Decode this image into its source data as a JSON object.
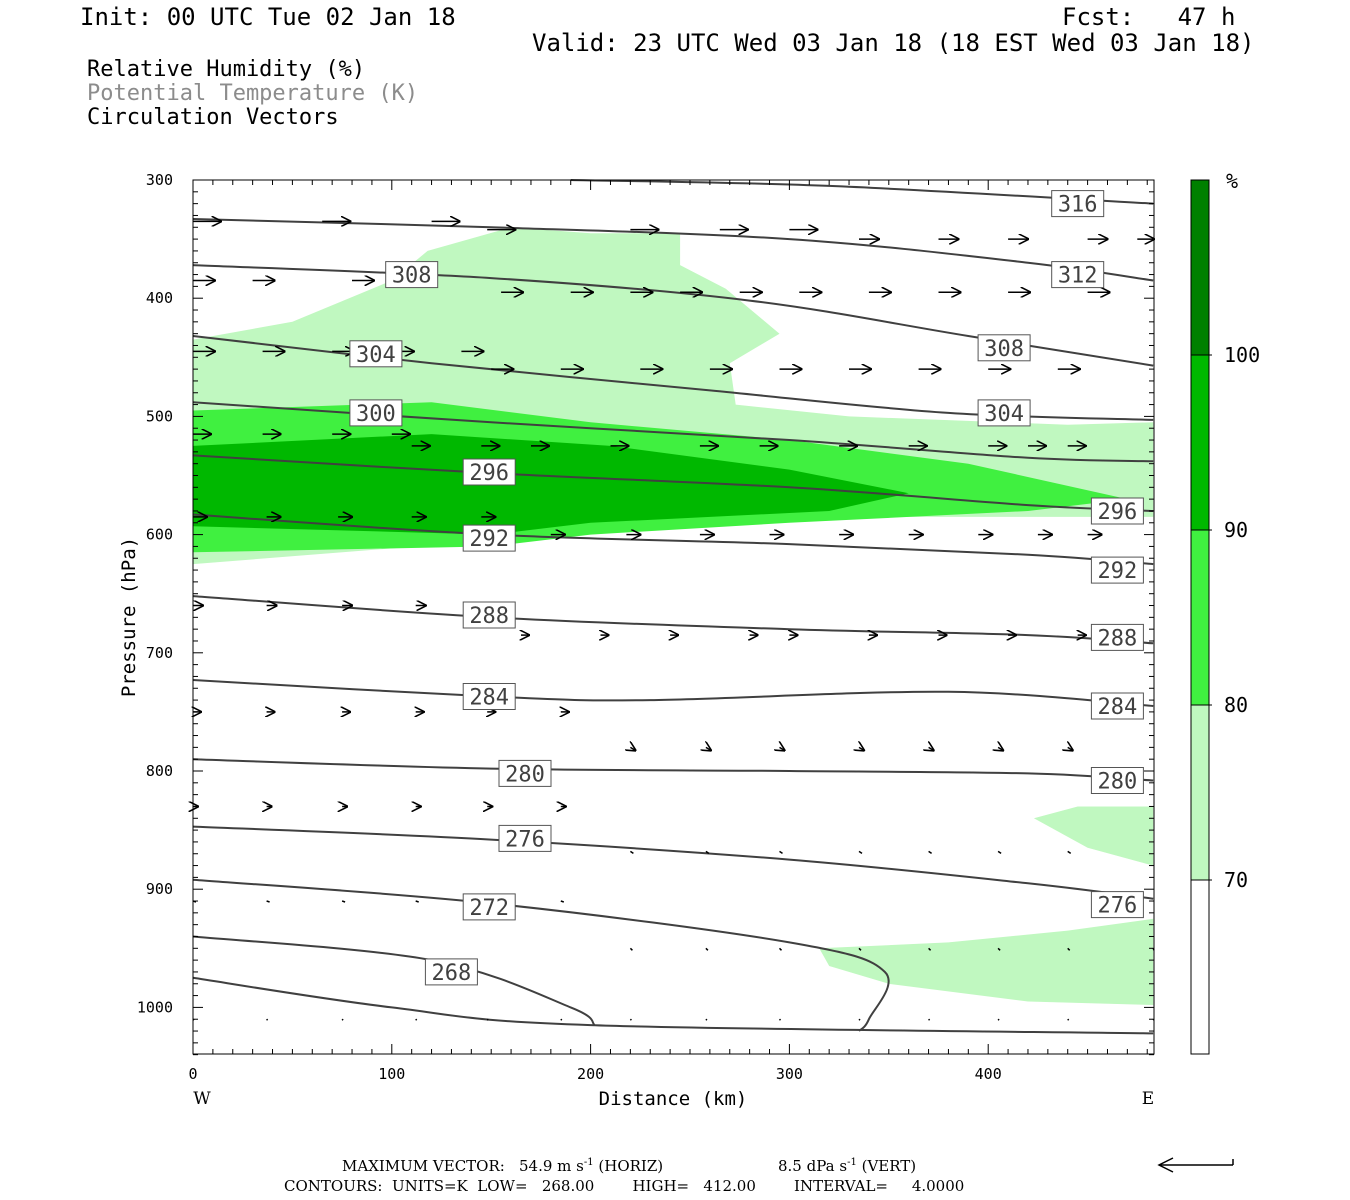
{
  "header": {
    "init": "Init: 00 UTC Tue 02 Jan 18",
    "fcst": "Fcst:   47 h",
    "valid": "Valid: 23 UTC Wed 03 Jan 18 (18 EST Wed 03 Jan 18)"
  },
  "legend": {
    "rh": "Relative Humidity (%)",
    "theta": "Potential Temperature (K)",
    "vectors": "Circulation Vectors"
  },
  "colors": {
    "rh_70_80": "#c0f8c0",
    "rh_80_90": "#40f040",
    "rh_90_100": "#00b800",
    "rh_100": "#008000",
    "theta_line": "#404040"
  },
  "chart_data": {
    "type": "cross-section",
    "xlabel": "Distance (km)",
    "ylabel": "Pressure (hPa)",
    "x_ticks": [
      0,
      100,
      200,
      300,
      400
    ],
    "y_ticks": [
      300,
      400,
      500,
      600,
      700,
      800,
      900,
      1000
    ],
    "xlim": [
      0,
      483
    ],
    "ylim": [
      1040,
      300
    ],
    "west_label": "W",
    "east_label": "E",
    "colorbar": {
      "unit": "%",
      "levels": [
        70,
        80,
        90,
        100
      ],
      "labels": [
        "70",
        "80",
        "90",
        "100"
      ]
    },
    "theta_contours": [
      {
        "label": "316",
        "points": [
          [
            190,
            300
          ],
          [
            320,
            305
          ],
          [
            483,
            320
          ]
        ],
        "labels_at": [
          [
            445,
            320
          ]
        ]
      },
      {
        "label": "312",
        "points": [
          [
            0,
            333
          ],
          [
            150,
            340
          ],
          [
            300,
            350
          ],
          [
            420,
            370
          ],
          [
            483,
            385
          ]
        ],
        "labels_at": [
          [
            445,
            380
          ]
        ]
      },
      {
        "label": "308",
        "points": [
          [
            0,
            372
          ],
          [
            150,
            383
          ],
          [
            280,
            402
          ],
          [
            390,
            432
          ],
          [
            483,
            457
          ]
        ],
        "labels_at": [
          [
            110,
            380
          ],
          [
            408,
            442
          ]
        ]
      },
      {
        "label": "304",
        "points": [
          [
            0,
            432
          ],
          [
            120,
            455
          ],
          [
            260,
            478
          ],
          [
            380,
            497
          ],
          [
            483,
            503
          ]
        ],
        "labels_at": [
          [
            92,
            447
          ],
          [
            408,
            497
          ]
        ]
      },
      {
        "label": "300",
        "points": [
          [
            0,
            488
          ],
          [
            150,
            505
          ],
          [
            300,
            520
          ],
          [
            420,
            535
          ],
          [
            483,
            538
          ]
        ],
        "labels_at": [
          [
            92,
            497
          ]
        ]
      },
      {
        "label": "296",
        "points": [
          [
            0,
            533
          ],
          [
            150,
            548
          ],
          [
            300,
            560
          ],
          [
            420,
            575
          ],
          [
            483,
            580
          ]
        ],
        "labels_at": [
          [
            149,
            547
          ],
          [
            465,
            580
          ]
        ]
      },
      {
        "label": "292",
        "points": [
          [
            0,
            583
          ],
          [
            150,
            600
          ],
          [
            300,
            608
          ],
          [
            420,
            617
          ],
          [
            483,
            625
          ]
        ],
        "labels_at": [
          [
            149,
            603
          ],
          [
            465,
            630
          ]
        ]
      },
      {
        "label": "288",
        "points": [
          [
            0,
            652
          ],
          [
            150,
            670
          ],
          [
            300,
            680
          ],
          [
            420,
            685
          ],
          [
            483,
            692
          ]
        ],
        "labels_at": [
          [
            149,
            668
          ],
          [
            465,
            687
          ]
        ]
      },
      {
        "label": "284",
        "points": [
          [
            0,
            723
          ],
          [
            150,
            737
          ],
          [
            230,
            740
          ],
          [
            380,
            733
          ],
          [
            483,
            745
          ]
        ],
        "labels_at": [
          [
            149,
            737
          ],
          [
            465,
            745
          ]
        ]
      },
      {
        "label": "280",
        "points": [
          [
            0,
            790
          ],
          [
            150,
            798
          ],
          [
            300,
            800
          ],
          [
            420,
            802
          ],
          [
            483,
            808
          ]
        ],
        "labels_at": [
          [
            167,
            802
          ],
          [
            465,
            808
          ]
        ]
      },
      {
        "label": "276",
        "points": [
          [
            0,
            847
          ],
          [
            150,
            858
          ],
          [
            300,
            875
          ],
          [
            420,
            895
          ],
          [
            483,
            908
          ]
        ],
        "labels_at": [
          [
            167,
            857
          ],
          [
            465,
            913
          ]
        ]
      },
      {
        "label": "272",
        "points": [
          [
            0,
            892
          ],
          [
            150,
            912
          ],
          [
            300,
            945
          ],
          [
            348,
            970
          ],
          [
            340,
            1010
          ],
          [
            335,
            1020
          ]
        ],
        "labels_at": [
          [
            149,
            915
          ]
        ]
      },
      {
        "label": "268",
        "points": [
          [
            0,
            940
          ],
          [
            120,
            960
          ],
          [
            190,
            1000
          ],
          [
            202,
            1015
          ]
        ],
        "labels_at": [
          [
            130,
            970
          ]
        ]
      },
      {
        "label": "",
        "points": [
          [
            0,
            975
          ],
          [
            100,
            1000
          ],
          [
            200,
            1015
          ],
          [
            483,
            1022
          ]
        ],
        "labels_at": []
      }
    ],
    "rh_regions": [
      {
        "level": "70",
        "points": [
          [
            0,
            435
          ],
          [
            50,
            420
          ],
          [
            100,
            385
          ],
          [
            118,
            360
          ],
          [
            160,
            340
          ],
          [
            200,
            345
          ],
          [
            245,
            345
          ],
          [
            245,
            372
          ],
          [
            268,
            392
          ],
          [
            295,
            430
          ],
          [
            270,
            455
          ],
          [
            273,
            490
          ],
          [
            330,
            500
          ],
          [
            440,
            507
          ],
          [
            483,
            505
          ],
          [
            483,
            585
          ],
          [
            300,
            585
          ],
          [
            150,
            605
          ],
          [
            0,
            625
          ]
        ]
      },
      {
        "level": "70",
        "points": [
          [
            315,
            950
          ],
          [
            380,
            945
          ],
          [
            440,
            935
          ],
          [
            483,
            925
          ],
          [
            483,
            998
          ],
          [
            420,
            995
          ],
          [
            350,
            980
          ],
          [
            320,
            965
          ]
        ]
      },
      {
        "level": "70",
        "points": [
          [
            423,
            840
          ],
          [
            445,
            830
          ],
          [
            483,
            830
          ],
          [
            483,
            880
          ],
          [
            450,
            865
          ]
        ]
      },
      {
        "level": "80",
        "points": [
          [
            0,
            495
          ],
          [
            120,
            488
          ],
          [
            200,
            505
          ],
          [
            300,
            520
          ],
          [
            390,
            540
          ],
          [
            470,
            570
          ],
          [
            420,
            580
          ],
          [
            300,
            590
          ],
          [
            200,
            600
          ],
          [
            150,
            610
          ],
          [
            0,
            615
          ]
        ]
      },
      {
        "level": "90",
        "points": [
          [
            0,
            525
          ],
          [
            120,
            515
          ],
          [
            210,
            525
          ],
          [
            300,
            545
          ],
          [
            360,
            565
          ],
          [
            320,
            580
          ],
          [
            200,
            590
          ],
          [
            150,
            600
          ],
          [
            0,
            593
          ]
        ]
      }
    ],
    "vectors": [
      {
        "p": 335,
        "xs": [
          0,
          65,
          120
        ],
        "len": 28,
        "dy": 0
      },
      {
        "p": 342,
        "xs": [
          148,
          220,
          265,
          300
        ],
        "len": 28,
        "dy": 0
      },
      {
        "p": 350,
        "xs": [
          335,
          375,
          410,
          450,
          475
        ],
        "len": 20,
        "dy": 0
      },
      {
        "p": 385,
        "xs": [
          0,
          30,
          80,
          110
        ],
        "len": 22,
        "dy": 0
      },
      {
        "p": 395,
        "xs": [
          155,
          190,
          220,
          245,
          275,
          305,
          340,
          375,
          410,
          450
        ],
        "len": 22,
        "dy": 0
      },
      {
        "p": 445,
        "xs": [
          0,
          35,
          70,
          100,
          135
        ],
        "len": 22,
        "dy": 0
      },
      {
        "p": 460,
        "xs": [
          150,
          185,
          225,
          260,
          295,
          330,
          365,
          400,
          435
        ],
        "len": 22,
        "dy": 0
      },
      {
        "p": 515,
        "xs": [
          0,
          35,
          70,
          100
        ],
        "len": 18,
        "dy": 0
      },
      {
        "p": 525,
        "xs": [
          110,
          145,
          170,
          210,
          255,
          285,
          325,
          360,
          400,
          420,
          440
        ],
        "len": 18,
        "dy": 0
      },
      {
        "p": 585,
        "xs": [
          0,
          37,
          73,
          110,
          145
        ],
        "len": 14,
        "dy": 0
      },
      {
        "p": 600,
        "xs": [
          180,
          218,
          255,
          290,
          325,
          360,
          395,
          425,
          450
        ],
        "len": 14,
        "dy": 0
      },
      {
        "p": 660,
        "xs": [
          0,
          37,
          75,
          112
        ],
        "len": 10,
        "dy": 0
      },
      {
        "p": 685,
        "xs": [
          165,
          205,
          240,
          280,
          300,
          340,
          375,
          410,
          445
        ],
        "len": 8,
        "dy": 0
      },
      {
        "p": 750,
        "xs": [
          0,
          37,
          75,
          112,
          148,
          185
        ],
        "len": 8,
        "dy": 0
      },
      {
        "p": 780,
        "xs": [
          220,
          258,
          295,
          335,
          370,
          405,
          440
        ],
        "len": 5,
        "dy": 3
      },
      {
        "p": 830,
        "xs": [
          0,
          37,
          75,
          112,
          148,
          185
        ],
        "len": 5,
        "dy": 0
      },
      {
        "p": 868,
        "xs": [
          220,
          258,
          295,
          335,
          370,
          405,
          440
        ],
        "len": 3,
        "dy": 2
      },
      {
        "p": 910,
        "xs": [
          0,
          37,
          75,
          112,
          148,
          185
        ],
        "len": 3,
        "dy": 1
      },
      {
        "p": 950,
        "xs": [
          220,
          258,
          295,
          335,
          370,
          405,
          440,
          483
        ],
        "len": 2,
        "dy": 2
      },
      {
        "p": 1010,
        "xs": [
          0,
          37,
          75,
          112,
          148,
          185,
          220,
          258,
          295,
          335,
          370,
          405,
          440,
          483
        ],
        "len": 1,
        "dy": 1
      }
    ]
  },
  "footer": {
    "max_vector_label": "MAXIMUM VECTOR:",
    "max_horiz": "54.9 m s",
    "horiz_tag": "(HORIZ)",
    "max_vert": "8.5 dPa s",
    "vert_tag": "(VERT)",
    "exponent": "-1",
    "contours_line": "CONTOURS:  UNITS=K  LOW=   268.00        HIGH=   412.00        INTERVAL=     4.0000"
  }
}
